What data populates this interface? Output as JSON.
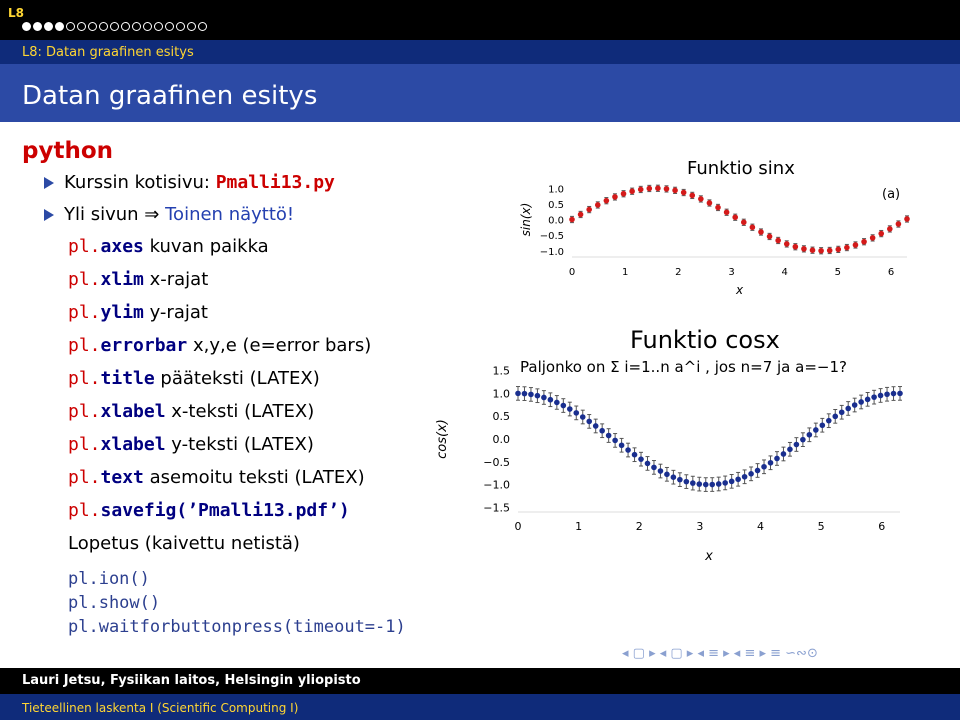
{
  "header": {
    "section": "L8",
    "navdots_total": 17,
    "navdots_active_index": 3,
    "subsection": "L8: Datan graafinen esitys",
    "title": "Datan graafinen esitys"
  },
  "content": {
    "heading": "python",
    "bullet1_prefix": "Kurssin kotisivu: ",
    "bullet1_code": "Pmalli13.py",
    "bullet2_prefix": "Yli sivun ",
    "bullet2_arrow": "⇒",
    "bullet2_link": "Toinen näyttö!",
    "items": [
      {
        "code": "pl.axes",
        "text": " kuvan paikka"
      },
      {
        "code": "pl.xlim",
        "text": " x-rajat"
      },
      {
        "code": "pl.ylim",
        "text": " y-rajat"
      },
      {
        "code": "pl.errorbar",
        "text": " x,y,e (e=error bars)"
      },
      {
        "code": "pl.title",
        "text": " pääteksti (LATEX)"
      },
      {
        "code": "pl.xlabel",
        "text": " x-teksti (LATEX)"
      },
      {
        "code": "pl.xlabel",
        "text": " y-teksti (LATEX)"
      },
      {
        "code": "pl.text",
        "text": " asemoitu teksti (LATEX)"
      },
      {
        "code": "pl.savefig(’Pmalli13.pdf’)",
        "text": ""
      }
    ],
    "lopetus": "Lopetus (kaivettu netistä)",
    "code_lines": [
      "pl.ion()",
      "pl.show()",
      "pl.waitforbuttonpress(timeout=-1)"
    ]
  },
  "chart_data": [
    {
      "type": "scatter",
      "title": "Funktio sinx",
      "annotation": "(a)",
      "xlabel": "x",
      "ylabel": "sin(x)",
      "xticks": [
        "0",
        "1",
        "2",
        "3",
        "4",
        "5",
        "6"
      ],
      "yticks": [
        "1.0",
        "0.5",
        "0.0",
        "−0.5",
        "−1.0"
      ],
      "xlim": [
        0,
        6.3
      ],
      "ylim": [
        -1.2,
        1.2
      ],
      "function": "sin",
      "n_points": 40,
      "error": 0.1,
      "color": "#d41a1a"
    },
    {
      "type": "scatter",
      "title": "Funktio cosx",
      "annotation": "Paljonko on Σ i=1..n a^i , jos n=7 ja a=−1?",
      "xlabel": "x",
      "ylabel": "cos(x)",
      "xticks": [
        "0",
        "1",
        "2",
        "3",
        "4",
        "5",
        "6"
      ],
      "yticks": [
        "1.5",
        "1.0",
        "0.5",
        "0.0",
        "−0.5",
        "−1.0",
        "−1.5"
      ],
      "xlim": [
        0,
        6.3
      ],
      "ylim": [
        -1.6,
        1.6
      ],
      "function": "cos",
      "n_points": 60,
      "error": 0.15,
      "color": "#1a2f8f"
    }
  ],
  "footer": {
    "author": "Lauri Jetsu, Fysiikan laitos, Helsingin yliopisto",
    "course": "Tieteellinen laskenta I  (Scientific Computing I)",
    "nav_symbols": "◂ ▢ ▸ ◂ ▢ ▸ ◂ ≡ ▸ ◂ ≡ ▸ ≡ ∽∾⊙"
  }
}
